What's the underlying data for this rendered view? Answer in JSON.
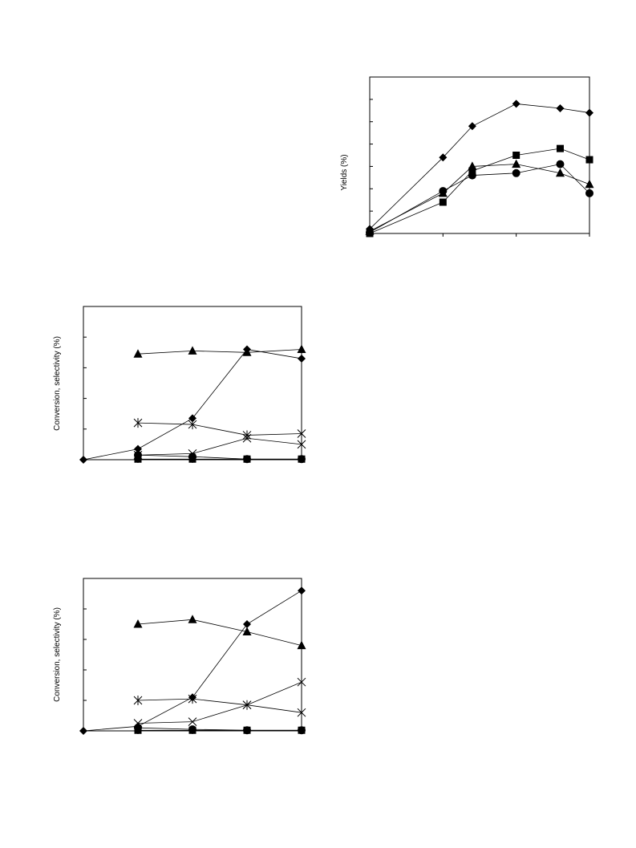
{
  "chart_data": [
    {
      "type": "line",
      "title": "",
      "xlabel": "",
      "ylabel": "Yields (%)",
      "grid": false,
      "xlim": [
        0,
        3
      ],
      "ylim": [
        0,
        7
      ],
      "series": [
        {
          "marker": "diamond",
          "x": [
            0,
            1,
            1.4,
            2,
            2.6,
            3
          ],
          "y": [
            0.2,
            3.4,
            4.8,
            5.8,
            5.6,
            5.4
          ]
        },
        {
          "marker": "triangle",
          "x": [
            0,
            1,
            1.4,
            2,
            2.6,
            3
          ],
          "y": [
            0.1,
            1.8,
            3.0,
            3.1,
            2.7,
            2.2
          ]
        },
        {
          "marker": "circle",
          "x": [
            0,
            1,
            1.4,
            2,
            2.6,
            3
          ],
          "y": [
            0.05,
            1.9,
            2.6,
            2.7,
            3.1,
            1.8
          ]
        },
        {
          "marker": "square",
          "x": [
            0,
            1,
            1.4,
            2,
            2.6,
            3
          ],
          "y": [
            0.0,
            1.4,
            2.8,
            3.5,
            3.8,
            3.3
          ]
        }
      ]
    },
    {
      "type": "line",
      "title": "",
      "xlabel": "",
      "ylabel": "Conversion, selectivity (%)",
      "grid": false,
      "xlim": [
        0,
        4
      ],
      "ylim": [
        0,
        5
      ],
      "series": [
        {
          "marker": "diamond",
          "x": [
            0,
            1,
            2,
            3,
            4
          ],
          "y": [
            0,
            0.35,
            1.35,
            3.6,
            3.3
          ]
        },
        {
          "marker": "triangle",
          "x": [
            1,
            2,
            3,
            4
          ],
          "y": [
            3.45,
            3.55,
            3.5,
            3.6
          ]
        },
        {
          "marker": "star",
          "x": [
            1,
            2,
            3,
            4
          ],
          "y": [
            1.2,
            1.15,
            0.8,
            0.85
          ]
        },
        {
          "marker": "x",
          "x": [
            1,
            2,
            3,
            4
          ],
          "y": [
            0.15,
            0.2,
            0.7,
            0.5
          ]
        },
        {
          "marker": "circle",
          "x": [
            1,
            2,
            3,
            4
          ],
          "y": [
            0.15,
            0.1,
            0.02,
            0.02
          ]
        },
        {
          "marker": "square",
          "x": [
            1,
            2,
            3,
            4
          ],
          "y": [
            0.02,
            0.02,
            0.02,
            0.02
          ]
        }
      ]
    },
    {
      "type": "line",
      "title": "",
      "xlabel": "",
      "ylabel": "Conversion, selectivity (%)",
      "grid": false,
      "xlim": [
        0,
        4
      ],
      "ylim": [
        0,
        5
      ],
      "series": [
        {
          "marker": "diamond",
          "x": [
            0,
            1,
            2,
            3,
            4
          ],
          "y": [
            0,
            0.15,
            1.1,
            3.5,
            4.6
          ]
        },
        {
          "marker": "triangle",
          "x": [
            1,
            2,
            3,
            4
          ],
          "y": [
            3.5,
            3.65,
            3.25,
            2.8
          ]
        },
        {
          "marker": "star",
          "x": [
            1,
            2,
            3,
            4
          ],
          "y": [
            1.0,
            1.05,
            0.85,
            0.6
          ]
        },
        {
          "marker": "x",
          "x": [
            1,
            2,
            3,
            4
          ],
          "y": [
            0.25,
            0.3,
            0.85,
            1.6
          ]
        },
        {
          "marker": "circle",
          "x": [
            1,
            2,
            3,
            4
          ],
          "y": [
            0.1,
            0.05,
            0.02,
            0.02
          ]
        },
        {
          "marker": "square",
          "x": [
            1,
            2,
            3,
            4
          ],
          "y": [
            0.02,
            0.02,
            0.02,
            0.02
          ]
        }
      ]
    }
  ]
}
